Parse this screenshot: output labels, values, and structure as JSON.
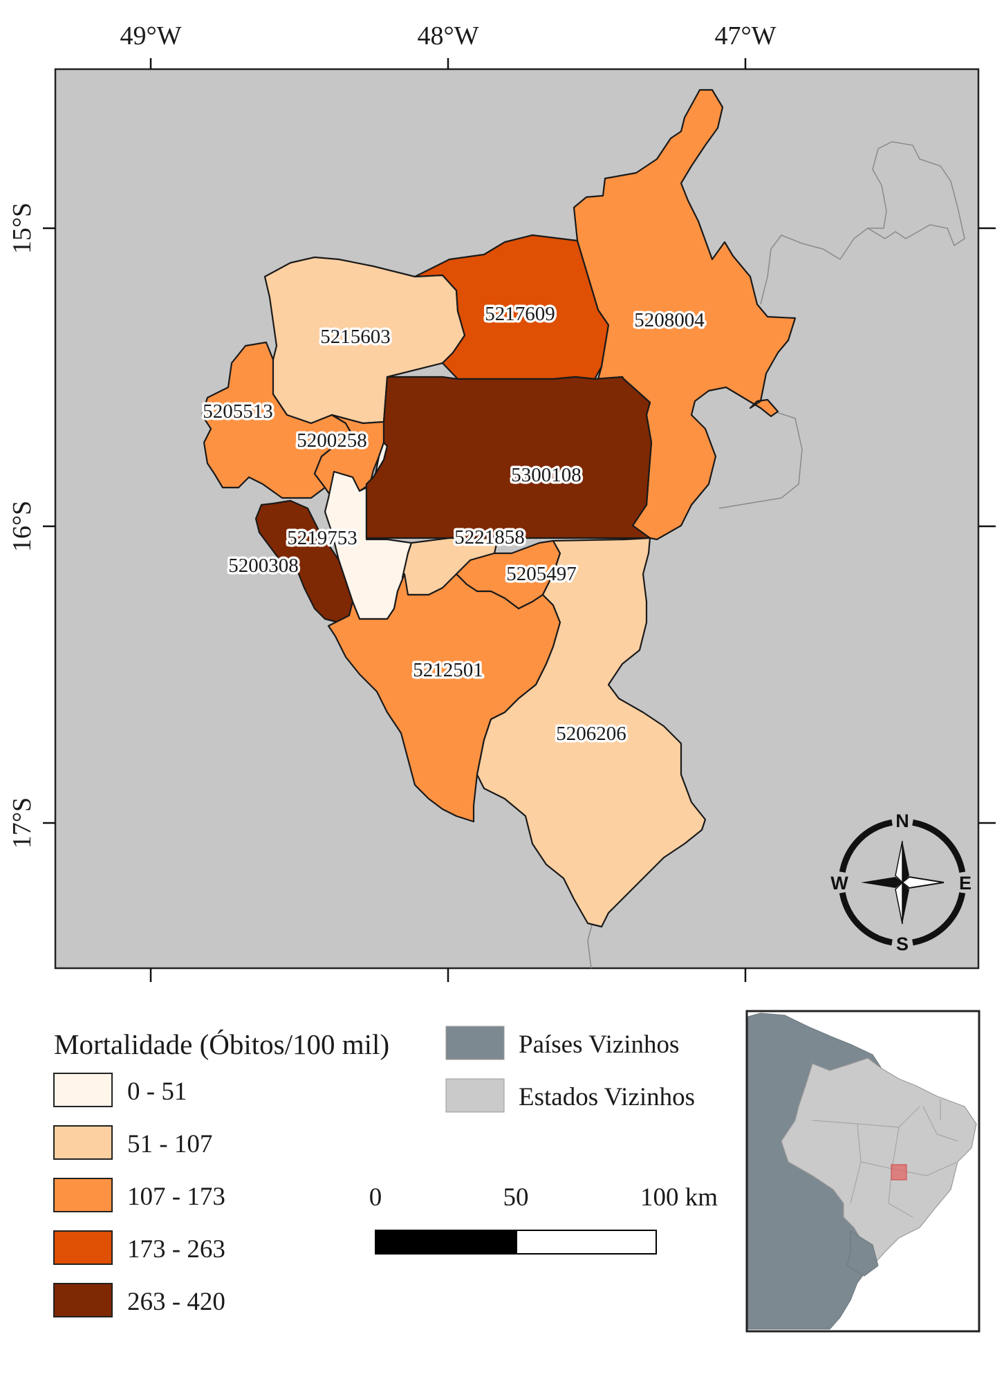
{
  "map": {
    "lon_ticks": [
      "49°W",
      "48°W",
      "47°W"
    ],
    "lat_ticks": [
      "15°S",
      "16°S",
      "17°S"
    ],
    "ocean_color": "#c6c6c6"
  },
  "municipalities": [
    {
      "code": "5215603",
      "class": 1
    },
    {
      "code": "5217609",
      "class": 3
    },
    {
      "code": "5208004",
      "class": 2
    },
    {
      "code": "5205513",
      "class": 2
    },
    {
      "code": "5200258",
      "class": 2
    },
    {
      "code": "5300108",
      "class": 4
    },
    {
      "code": "5219753",
      "class": 0
    },
    {
      "code": "5221858",
      "class": 1
    },
    {
      "code": "5200308",
      "class": 4
    },
    {
      "code": "5205497",
      "class": 2
    },
    {
      "code": "5212501",
      "class": 2
    },
    {
      "code": "5206206",
      "class": 1
    }
  ],
  "legend": {
    "title": "Mortalidade (Óbitos/100 mil)",
    "classes": [
      {
        "label": "0 - 51",
        "color": "#fff5eb"
      },
      {
        "label": "51 - 107",
        "color": "#fdd0a2"
      },
      {
        "label": "107 - 173",
        "color": "#fd9243"
      },
      {
        "label": "173 - 263",
        "color": "#df4f04"
      },
      {
        "label": "263 - 420",
        "color": "#7f2804"
      }
    ],
    "other": [
      {
        "label": "Países Vizinhos",
        "color": "#7d8990"
      },
      {
        "label": "Estados Vizinhos",
        "color": "#cacaca"
      }
    ]
  },
  "scalebar": {
    "labels": [
      "0",
      "50",
      "100 km"
    ]
  },
  "compass": {
    "n": "N",
    "s": "S",
    "e": "E",
    "w": "W"
  }
}
